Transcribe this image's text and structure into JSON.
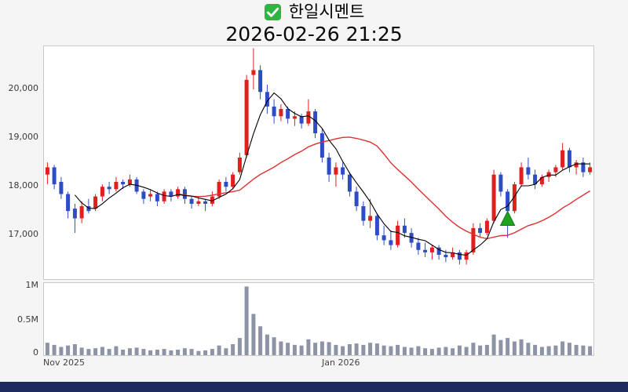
{
  "header": {
    "title": "한일시멘트",
    "datetime": "2026-02-26 21:25",
    "icon": "green-checkbox"
  },
  "colors": {
    "background": "#f5f5f6",
    "panel_bg": "#ffffff",
    "up": "#e01f1f",
    "down": "#2e4cc5",
    "ma_short": "#000000",
    "ma_long": "#e03030",
    "volume": "#8d94a5",
    "marker": "#1fa321",
    "marker_edge": "#0c7a0e",
    "check_icon": "#2fb344",
    "bottom_bar": "#1d2b5e"
  },
  "chart_data": {
    "type": "candlestick",
    "title": "한일시멘트",
    "datetime": "2026-02-26 21:25",
    "y_axis": {
      "ticks": [
        20000,
        19000,
        18000,
        17000
      ],
      "tick_labels": [
        "20,000",
        "19,000",
        "18,000",
        "17,000"
      ],
      "range": [
        16100,
        20890
      ]
    },
    "volume_axis": {
      "ticks": [
        1000000,
        500000,
        0
      ],
      "tick_labels": [
        "1M",
        "0.5M",
        "0"
      ],
      "range": [
        0,
        1050000
      ]
    },
    "x_axis": {
      "labels": [
        {
          "text": "Nov 2025",
          "index": 0
        },
        {
          "text": "Jan 2026",
          "index": 41
        }
      ]
    },
    "overlays": {
      "ma_short_period": 5,
      "ma_long_period": 20,
      "marker": {
        "type": "triangle-up",
        "meaning": "buy-signal",
        "index": 67,
        "price": 17350
      }
    },
    "candles": [
      [
        18250,
        18500,
        18050,
        18400,
        180000
      ],
      [
        18400,
        18450,
        17950,
        18050,
        150000
      ],
      [
        18100,
        18200,
        17750,
        17850,
        120000
      ],
      [
        17850,
        17900,
        17350,
        17500,
        140000
      ],
      [
        17550,
        17650,
        17050,
        17350,
        160000
      ],
      [
        17350,
        17700,
        17250,
        17600,
        110000
      ],
      [
        17600,
        17750,
        17450,
        17500,
        90000
      ],
      [
        17550,
        17850,
        17500,
        17800,
        100000
      ],
      [
        17800,
        18050,
        17700,
        18000,
        120000
      ],
      [
        18000,
        18100,
        17850,
        17950,
        90000
      ],
      [
        17950,
        18200,
        17900,
        18100,
        130000
      ],
      [
        18100,
        18150,
        17950,
        18050,
        80000
      ],
      [
        18050,
        18250,
        18000,
        18150,
        100000
      ],
      [
        18150,
        18200,
        17850,
        17900,
        110000
      ],
      [
        17900,
        17950,
        17650,
        17750,
        90000
      ],
      [
        17800,
        17950,
        17700,
        17850,
        70000
      ],
      [
        17850,
        17900,
        17600,
        17700,
        80000
      ],
      [
        17700,
        17950,
        17650,
        17900,
        90000
      ],
      [
        17900,
        17950,
        17700,
        17800,
        70000
      ],
      [
        17800,
        18000,
        17750,
        17950,
        80000
      ],
      [
        17950,
        18000,
        17650,
        17750,
        100000
      ],
      [
        17750,
        17800,
        17550,
        17650,
        90000
      ],
      [
        17650,
        17800,
        17600,
        17700,
        60000
      ],
      [
        17700,
        17750,
        17500,
        17650,
        70000
      ],
      [
        17650,
        17900,
        17600,
        17800,
        90000
      ],
      [
        17800,
        18150,
        17750,
        18100,
        140000
      ],
      [
        18100,
        18200,
        17900,
        18000,
        100000
      ],
      [
        18000,
        18300,
        17950,
        18250,
        160000
      ],
      [
        18300,
        18700,
        18250,
        18600,
        250000
      ],
      [
        18650,
        20300,
        18600,
        20200,
        1000000
      ],
      [
        20300,
        20850,
        20000,
        20400,
        600000
      ],
      [
        20400,
        20500,
        19800,
        19950,
        420000
      ],
      [
        19950,
        20100,
        19500,
        19650,
        300000
      ],
      [
        19650,
        19800,
        19300,
        19450,
        260000
      ],
      [
        19450,
        19700,
        19350,
        19600,
        200000
      ],
      [
        19600,
        19650,
        19300,
        19400,
        180000
      ],
      [
        19400,
        19550,
        19250,
        19450,
        150000
      ],
      [
        19450,
        19500,
        19200,
        19300,
        140000
      ],
      [
        19300,
        19800,
        19250,
        19550,
        230000
      ],
      [
        19550,
        19600,
        19000,
        19100,
        180000
      ],
      [
        19100,
        19200,
        18500,
        18600,
        200000
      ],
      [
        18600,
        18700,
        18100,
        18250,
        190000
      ],
      [
        18250,
        18500,
        18000,
        18400,
        150000
      ],
      [
        18400,
        18500,
        18150,
        18250,
        130000
      ],
      [
        18250,
        18300,
        17800,
        17900,
        160000
      ],
      [
        17900,
        18000,
        17500,
        17600,
        170000
      ],
      [
        17600,
        17700,
        17200,
        17300,
        150000
      ],
      [
        17300,
        17750,
        17150,
        17400,
        180000
      ],
      [
        17400,
        17450,
        16900,
        17000,
        170000
      ],
      [
        17000,
        17200,
        16800,
        16900,
        140000
      ],
      [
        16900,
        17100,
        16700,
        16800,
        130000
      ],
      [
        16800,
        17300,
        16750,
        17200,
        150000
      ],
      [
        17200,
        17350,
        16950,
        17050,
        120000
      ],
      [
        17050,
        17150,
        16750,
        16850,
        110000
      ],
      [
        16850,
        16950,
        16600,
        16700,
        130000
      ],
      [
        16700,
        16850,
        16550,
        16650,
        100000
      ],
      [
        16650,
        16800,
        16500,
        16750,
        90000
      ],
      [
        16750,
        16800,
        16500,
        16600,
        110000
      ],
      [
        16600,
        16700,
        16450,
        16550,
        120000
      ],
      [
        16550,
        16750,
        16500,
        16650,
        100000
      ],
      [
        16650,
        16700,
        16400,
        16500,
        140000
      ],
      [
        16500,
        16700,
        16400,
        16650,
        120000
      ],
      [
        16650,
        17250,
        16600,
        17150,
        180000
      ],
      [
        17150,
        17250,
        16950,
        17050,
        140000
      ],
      [
        17050,
        17350,
        17000,
        17300,
        150000
      ],
      [
        17300,
        18350,
        17250,
        18250,
        300000
      ],
      [
        18250,
        18300,
        17800,
        17900,
        220000
      ],
      [
        17900,
        17950,
        16950,
        17500,
        250000
      ],
      [
        17500,
        18100,
        17450,
        18050,
        200000
      ],
      [
        18050,
        18500,
        18000,
        18400,
        230000
      ],
      [
        18400,
        18600,
        18150,
        18250,
        180000
      ],
      [
        18250,
        18350,
        17950,
        18050,
        150000
      ],
      [
        18050,
        18250,
        18000,
        18200,
        120000
      ],
      [
        18200,
        18350,
        18100,
        18300,
        130000
      ],
      [
        18300,
        18450,
        18200,
        18400,
        140000
      ],
      [
        18400,
        18900,
        18350,
        18750,
        200000
      ],
      [
        18750,
        18800,
        18300,
        18400,
        180000
      ],
      [
        18400,
        18550,
        18250,
        18500,
        150000
      ],
      [
        18500,
        18600,
        18200,
        18300,
        140000
      ],
      [
        18300,
        18500,
        18250,
        18400,
        130000
      ]
    ]
  }
}
